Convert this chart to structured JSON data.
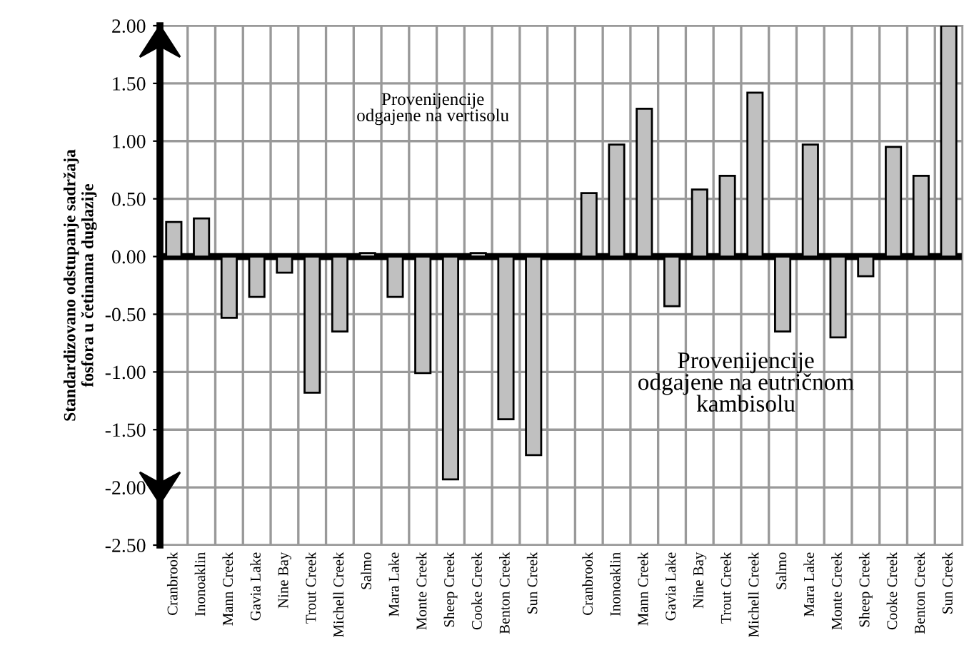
{
  "chart_data": {
    "type": "bar",
    "ylabel": "Standardizovano odstupanje sadržaja\nfosfora u četinama duglazije",
    "categories": [
      "Cranbrook",
      "Inonoaklin",
      "Mann Creek",
      "Gavia Lake",
      "Nine Bay",
      "Trout Creek",
      "Michell Creek",
      "Salmo",
      "Mara Lake",
      "Monte Creek",
      "Sheep Creek",
      "Cooke Creek",
      "Benton Creek",
      "Sun Creek",
      null,
      "Cranbrook",
      "Inonoaklin",
      "Mann Creek",
      "Gavia Lake",
      "Nine Bay",
      "Trout Creek",
      "Michell Creek",
      "Salmo",
      "Mara Lake",
      "Monte Creek",
      "Sheep Creek",
      "Cooke Creek",
      "Benton Creek",
      "Sun Creek"
    ],
    "values": [
      0.3,
      0.33,
      -0.53,
      -0.35,
      -0.14,
      -1.18,
      -0.65,
      0.03,
      -0.35,
      -1.01,
      -1.93,
      0.03,
      -1.41,
      -1.72,
      null,
      0.55,
      0.97,
      1.28,
      -0.43,
      0.58,
      0.7,
      1.42,
      -0.65,
      0.97,
      -0.7,
      -0.17,
      0.95,
      0.7,
      2.0
    ],
    "color": "#c0c0c0",
    "ylim": [
      -2.5,
      2.0
    ],
    "yticks": [
      {
        "value": -2.5,
        "label": "-2.50"
      },
      {
        "value": -2.0,
        "label": "-2.00"
      },
      {
        "value": -1.5,
        "label": "-1.50"
      },
      {
        "value": -1.0,
        "label": "-1.00"
      },
      {
        "value": -0.5,
        "label": "-0.50"
      },
      {
        "value": 0,
        "label": "0.00"
      },
      {
        "value": 0.5,
        "label": "0.50"
      },
      {
        "value": 1.0,
        "label": "1.00"
      },
      {
        "value": 1.5,
        "label": "1.50"
      },
      {
        "value": 2.0,
        "label": "2.00"
      }
    ],
    "grid": true,
    "annotations": [
      "Provenijencije\nodgajene na vertisolu",
      "Provenijencije\nodgajene na eutričnom\nkambisolu"
    ]
  }
}
